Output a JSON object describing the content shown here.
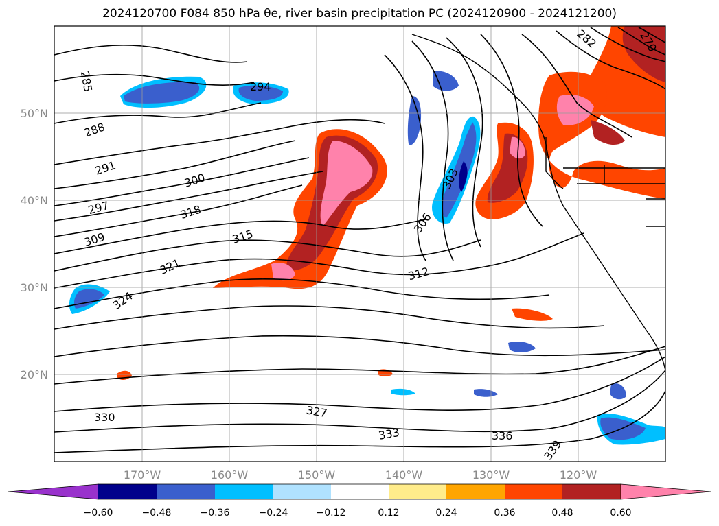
{
  "title": "2024120700 F084 850 hPa θe, river basin precipitation PC (2024120900 - 2024121200)",
  "map": {
    "lon_labels": [
      "170°W",
      "160°W",
      "150°W",
      "140°W",
      "130°W",
      "120°W"
    ],
    "lat_labels": [
      "50°N",
      "40°N",
      "30°N",
      "20°N"
    ],
    "theta_e_contour_labels": [
      "285",
      "288",
      "291",
      "294",
      "297",
      "300",
      "303",
      "306",
      "309",
      "312",
      "315",
      "318",
      "321",
      "324",
      "327",
      "330",
      "333",
      "336",
      "339",
      "282",
      "270"
    ]
  },
  "colorbar": {
    "ticks": [
      "−0.60",
      "−0.48",
      "−0.36",
      "−0.24",
      "−0.12",
      "0.12",
      "0.24",
      "0.36",
      "0.48",
      "0.60"
    ],
    "colors": [
      "#9932CC",
      "#00008B",
      "#3A5FCD",
      "#00BFFF",
      "#B0E2FF",
      "#FFFFFF",
      "#FFEC8B",
      "#FFA500",
      "#FF4500",
      "#B22222",
      "#FF82AB",
      "#FF82AB"
    ],
    "extend": "both"
  }
}
